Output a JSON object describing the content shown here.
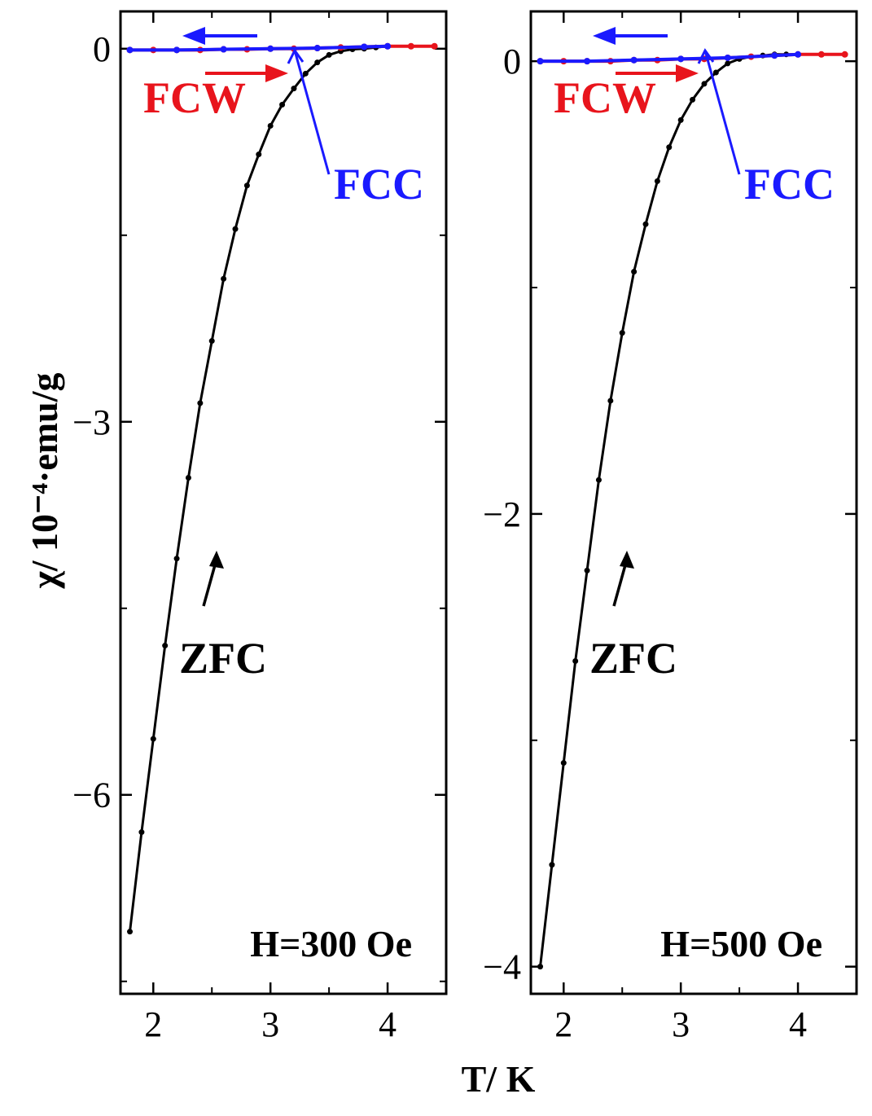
{
  "xlabel": "T/ K",
  "ylabel": "χ/ 10⁻⁴·emu/g",
  "colors": {
    "zfc": "#000000",
    "fcw": "#e8141c",
    "fcc": "#1a1aff"
  },
  "chart_data": [
    {
      "type": "line",
      "annotation_field": "H=300 Oe",
      "xlim": [
        1.72,
        4.5
      ],
      "ylim": [
        -7.6,
        0.3
      ],
      "xticks": [
        2,
        3,
        4
      ],
      "yticks": [
        0,
        -3,
        -6
      ],
      "ytick_labels": [
        "0",
        "−3",
        "−6"
      ],
      "labels": {
        "fcw": "FCW",
        "fcc": "FCC",
        "zfc": "ZFC"
      },
      "series": [
        {
          "name": "ZFC",
          "x": [
            1.8,
            1.9,
            2.0,
            2.1,
            2.2,
            2.3,
            2.4,
            2.5,
            2.6,
            2.7,
            2.8,
            2.9,
            3.0,
            3.1,
            3.2,
            3.3,
            3.4,
            3.5,
            3.6,
            3.7,
            3.8,
            3.9,
            4.0
          ],
          "y": [
            -7.1,
            -6.3,
            -5.55,
            -4.8,
            -4.1,
            -3.45,
            -2.85,
            -2.35,
            -1.85,
            -1.45,
            -1.1,
            -0.85,
            -0.62,
            -0.45,
            -0.32,
            -0.2,
            -0.11,
            -0.05,
            -0.02,
            -0.005,
            0.0,
            0.01,
            0.02
          ]
        },
        {
          "name": "FCW",
          "x": [
            1.8,
            2.0,
            2.2,
            2.4,
            2.6,
            2.8,
            3.0,
            3.2,
            3.4,
            3.6,
            3.8,
            4.0,
            4.2,
            4.4
          ],
          "y": [
            -0.01,
            -0.01,
            -0.01,
            -0.01,
            -0.005,
            -0.005,
            0.0,
            0.0,
            0.005,
            0.01,
            0.015,
            0.02,
            0.02,
            0.02
          ]
        },
        {
          "name": "FCC",
          "x": [
            1.8,
            2.2,
            2.6,
            3.0,
            3.4,
            3.8,
            4.0
          ],
          "y": [
            -0.01,
            -0.01,
            -0.005,
            0.0,
            0.005,
            0.015,
            0.02
          ]
        }
      ]
    },
    {
      "type": "line",
      "annotation_field": "H=500 Oe",
      "xlim": [
        1.72,
        4.5
      ],
      "ylim": [
        -4.12,
        0.22
      ],
      "xticks": [
        2,
        3,
        4
      ],
      "yticks": [
        0,
        -2,
        -4
      ],
      "ytick_labels": [
        "0",
        "−2",
        "−4"
      ],
      "labels": {
        "fcw": "FCW",
        "fcc": "FCC",
        "zfc": "ZFC"
      },
      "series": [
        {
          "name": "ZFC",
          "x": [
            1.8,
            1.9,
            2.0,
            2.1,
            2.2,
            2.3,
            2.4,
            2.5,
            2.6,
            2.7,
            2.8,
            2.9,
            3.0,
            3.1,
            3.2,
            3.3,
            3.4,
            3.5,
            3.6,
            3.7,
            3.8,
            3.9,
            4.0
          ],
          "y": [
            -4.0,
            -3.55,
            -3.1,
            -2.65,
            -2.25,
            -1.85,
            -1.5,
            -1.2,
            -0.93,
            -0.72,
            -0.53,
            -0.38,
            -0.26,
            -0.17,
            -0.1,
            -0.05,
            -0.01,
            0.01,
            0.02,
            0.025,
            0.03,
            0.03,
            0.03
          ]
        },
        {
          "name": "FCW",
          "x": [
            1.8,
            2.0,
            2.2,
            2.4,
            2.6,
            2.8,
            3.0,
            3.2,
            3.4,
            3.6,
            3.8,
            4.0,
            4.2,
            4.4
          ],
          "y": [
            0.0,
            0.0,
            0.0,
            0.0,
            0.005,
            0.005,
            0.01,
            0.01,
            0.015,
            0.02,
            0.025,
            0.03,
            0.03,
            0.03
          ]
        },
        {
          "name": "FCC",
          "x": [
            1.8,
            2.2,
            2.6,
            3.0,
            3.4,
            3.8,
            4.0
          ],
          "y": [
            0.0,
            0.0,
            0.005,
            0.01,
            0.015,
            0.025,
            0.03
          ]
        }
      ]
    }
  ]
}
